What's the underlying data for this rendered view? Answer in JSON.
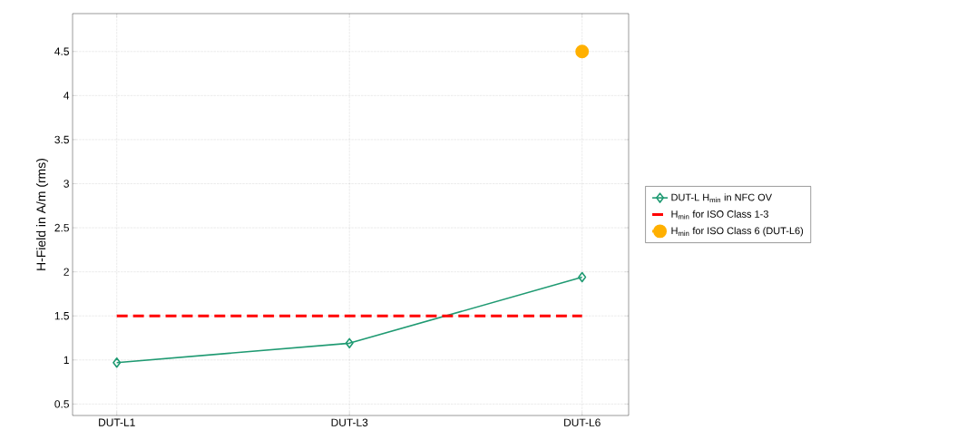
{
  "chart_data": {
    "type": "line",
    "ylabel": "H-Field in A/m (rms)",
    "categories": [
      "DUT-L1",
      "DUT-L3",
      "DUT-L6"
    ],
    "series": [
      {
        "name": "DUT-L H$_{min}$ in NFC OV",
        "color": "#1f9a72",
        "values": [
          0.97,
          1.19,
          1.94
        ],
        "marker": "diamond",
        "line_style": "solid"
      },
      {
        "name": "H$_{min}$ for ISO Class 1-3",
        "color": "#ff0000",
        "values": [
          1.5,
          1.5,
          1.5
        ],
        "marker": "none",
        "line_style": "dashed"
      },
      {
        "name": "H$_{min}$ for ISO Class 6 (DUT-L6)",
        "color": "#ffb000",
        "values": [
          null,
          null,
          4.5
        ],
        "marker": "circle",
        "line_style": "dashed"
      }
    ],
    "ylim": [
      0.37,
      4.93
    ],
    "yticks": [
      0.5,
      1,
      1.5,
      2,
      2.5,
      3,
      3.5,
      4,
      4.5
    ],
    "grid": true,
    "legend": "right"
  }
}
